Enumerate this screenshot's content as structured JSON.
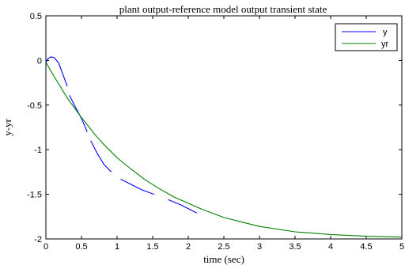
{
  "chart_data": {
    "type": "line",
    "title": "plant output-reference model output transient state",
    "xlabel": "time (sec)",
    "ylabel": "y-yr",
    "xlim": [
      0,
      5
    ],
    "ylim": [
      -2,
      0.5
    ],
    "xticks": [
      "0",
      "0.5",
      "1",
      "1.5",
      "2",
      "2.5",
      "3",
      "3.5",
      "4",
      "4.5",
      "5"
    ],
    "yticks": [
      "0.5",
      "0",
      "-0.5",
      "-1",
      "-1.5",
      "-2"
    ],
    "grid": false,
    "legend_position": "top-right",
    "series": [
      {
        "name": "y",
        "color": "#0000ff",
        "segments": [
          [
            [
              0,
              -0.02
            ],
            [
              0.03,
              0.02
            ],
            [
              0.07,
              0.04
            ],
            [
              0.12,
              0.03
            ],
            [
              0.18,
              -0.03
            ],
            [
              0.25,
              -0.18
            ],
            [
              0.3,
              -0.29
            ]
          ],
          [
            [
              0.33,
              -0.39
            ],
            [
              0.4,
              -0.5
            ],
            [
              0.5,
              -0.65
            ],
            [
              0.58,
              -0.8
            ]
          ],
          [
            [
              0.63,
              -0.9
            ],
            [
              0.72,
              -1.04
            ],
            [
              0.82,
              -1.17
            ],
            [
              0.92,
              -1.25
            ]
          ],
          [
            [
              1.05,
              -1.33
            ],
            [
              1.2,
              -1.39
            ],
            [
              1.35,
              -1.45
            ],
            [
              1.52,
              -1.5
            ]
          ],
          [
            [
              1.72,
              -1.56
            ],
            [
              1.9,
              -1.62
            ],
            [
              2.12,
              -1.71
            ]
          ]
        ]
      },
      {
        "name": "yr",
        "color": "#008000",
        "points": [
          [
            0,
            -0.02
          ],
          [
            0.1,
            -0.16
          ],
          [
            0.2,
            -0.29
          ],
          [
            0.3,
            -0.42
          ],
          [
            0.4,
            -0.53
          ],
          [
            0.5,
            -0.64
          ],
          [
            0.6,
            -0.74
          ],
          [
            0.7,
            -0.84
          ],
          [
            0.8,
            -0.93
          ],
          [
            0.9,
            -1.01
          ],
          [
            1.0,
            -1.09
          ],
          [
            1.2,
            -1.22
          ],
          [
            1.4,
            -1.34
          ],
          [
            1.6,
            -1.44
          ],
          [
            1.8,
            -1.53
          ],
          [
            2.0,
            -1.6
          ],
          [
            2.2,
            -1.67
          ],
          [
            2.5,
            -1.76
          ],
          [
            2.8,
            -1.82
          ],
          [
            3.0,
            -1.86
          ],
          [
            3.5,
            -1.92
          ],
          [
            4.0,
            -1.95
          ],
          [
            4.5,
            -1.97
          ],
          [
            5.0,
            -1.98
          ]
        ]
      }
    ]
  }
}
